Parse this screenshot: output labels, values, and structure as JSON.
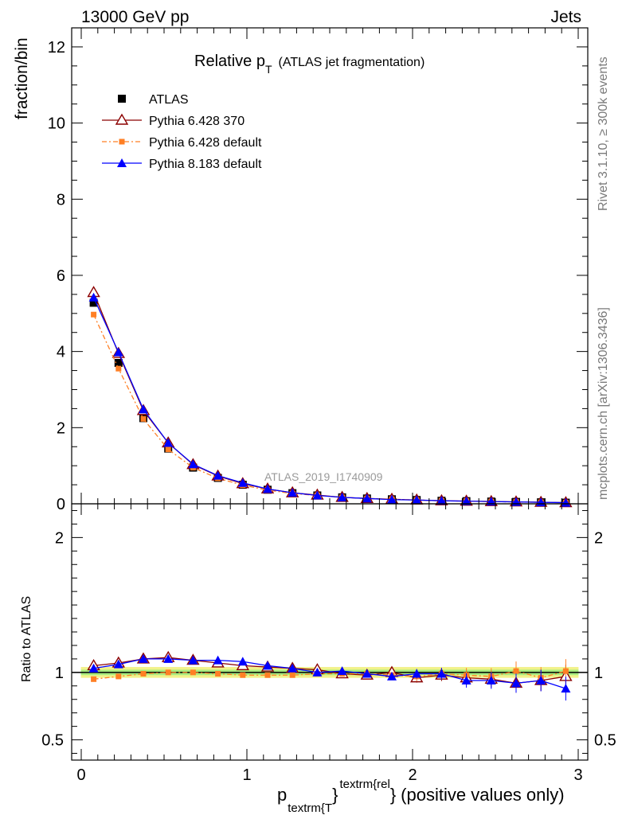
{
  "header": {
    "left": "13000 GeV pp",
    "right": "Jets"
  },
  "title": {
    "main": "Relative p",
    "sub": "T",
    "extra": "(ATLAS jet fragmentation)"
  },
  "side_labels": {
    "rivet": "Rivet 3.1.10, ≥ 300k events",
    "mcplots": "mcplots.cern.ch [arXiv:1306.3436]"
  },
  "analysis_label": "ATLAS_2019_I1740909",
  "legend": [
    {
      "label": "ATLAS",
      "color": "#000000",
      "marker": "square"
    },
    {
      "label": "Pythia 6.428 370",
      "color": "#8b0000",
      "marker": "open-triangle"
    },
    {
      "label": "Pythia 6.428 default",
      "color": "#ff7f24",
      "marker": "small-square"
    },
    {
      "label": "Pythia 8.183 default",
      "color": "#0000ff",
      "marker": "triangle"
    }
  ],
  "xlabel": {
    "p": "p",
    "sub": "textrm{T",
    "brace": "}",
    "sup": "textrm{rel",
    "brace2": "}",
    "rest": "(positive values only)"
  },
  "chart_data": [
    {
      "type": "scatter",
      "panel": "main",
      "ylabel": "fraction/bin",
      "xlim": [
        0,
        3
      ],
      "ylim": [
        0,
        12.5
      ],
      "x_ticks": [
        "0",
        "1",
        "2",
        "3"
      ],
      "y_ticks": [
        "0",
        "2",
        "4",
        "6",
        "8",
        "10",
        "12"
      ],
      "x": [
        0.075,
        0.225,
        0.375,
        0.525,
        0.675,
        0.825,
        0.975,
        1.125,
        1.275,
        1.425,
        1.575,
        1.725,
        1.875,
        2.025,
        2.175,
        2.325,
        2.475,
        2.625,
        2.775,
        2.925
      ],
      "series": [
        {
          "name": "ATLAS",
          "values": [
            5.28,
            3.7,
            2.25,
            1.45,
            0.95,
            0.68,
            0.5,
            0.37,
            0.28,
            0.22,
            0.17,
            0.14,
            0.12,
            0.1,
            0.08,
            0.07,
            0.06,
            0.05,
            0.04,
            0.03
          ]
        },
        {
          "name": "Pythia 6.428 370",
          "values": [
            5.55,
            3.95,
            2.45,
            1.6,
            1.03,
            0.73,
            0.53,
            0.39,
            0.29,
            0.23,
            0.17,
            0.14,
            0.12,
            0.1,
            0.08,
            0.07,
            0.06,
            0.05,
            0.04,
            0.03
          ]
        },
        {
          "name": "Pythia 6.428 default",
          "values": [
            4.97,
            3.55,
            2.23,
            1.43,
            0.95,
            0.67,
            0.49,
            0.36,
            0.27,
            0.22,
            0.17,
            0.14,
            0.12,
            0.1,
            0.08,
            0.07,
            0.06,
            0.05,
            0.04,
            0.03
          ]
        },
        {
          "name": "Pythia 8.183 default",
          "values": [
            5.42,
            3.98,
            2.48,
            1.6,
            1.04,
            0.74,
            0.55,
            0.39,
            0.29,
            0.22,
            0.17,
            0.14,
            0.11,
            0.1,
            0.08,
            0.07,
            0.06,
            0.05,
            0.04,
            0.03
          ]
        }
      ]
    },
    {
      "type": "scatter",
      "panel": "ratio",
      "ylabel": "Ratio to ATLAS",
      "xlim": [
        0,
        3
      ],
      "ylim": [
        0.35,
        2.25
      ],
      "y_ticks": [
        "0.5",
        "1",
        "2"
      ],
      "band": {
        "inner": 0.02,
        "outer": 0.04
      },
      "x": [
        0.075,
        0.225,
        0.375,
        0.525,
        0.675,
        0.825,
        0.975,
        1.125,
        1.275,
        1.425,
        1.575,
        1.725,
        1.875,
        2.025,
        2.175,
        2.325,
        2.475,
        2.625,
        2.775,
        2.925
      ],
      "series": [
        {
          "name": "Pythia 6.428 370",
          "values": [
            1.05,
            1.07,
            1.1,
            1.11,
            1.09,
            1.07,
            1.05,
            1.04,
            1.03,
            1.02,
            0.99,
            0.98,
            1.0,
            0.96,
            0.98,
            0.96,
            0.95,
            0.92,
            0.94,
            0.97
          ]
        },
        {
          "name": "Pythia 6.428 default",
          "values": [
            0.95,
            0.97,
            0.99,
            1.0,
            1.0,
            0.99,
            0.98,
            0.98,
            0.98,
            0.99,
            0.99,
            0.99,
            0.98,
            0.97,
            0.99,
            0.98,
            0.97,
            1.01,
            0.96,
            1.01
          ]
        },
        {
          "name": "Pythia 8.183 default",
          "values": [
            1.03,
            1.06,
            1.1,
            1.1,
            1.09,
            1.09,
            1.08,
            1.05,
            1.03,
            1.0,
            1.01,
            0.99,
            0.97,
            0.99,
            0.99,
            0.94,
            0.94,
            0.92,
            0.94,
            0.88
          ]
        }
      ]
    }
  ]
}
